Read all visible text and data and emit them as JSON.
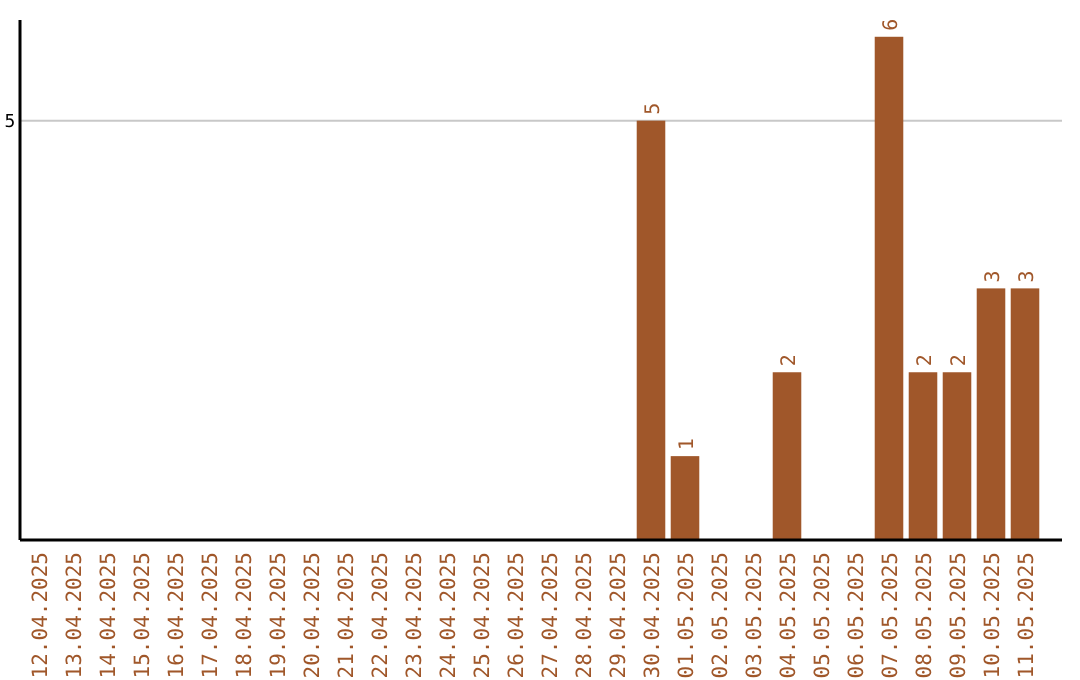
{
  "chart_data": {
    "type": "bar",
    "categories": [
      "12.04.2025",
      "13.04.2025",
      "14.04.2025",
      "15.04.2025",
      "16.04.2025",
      "17.04.2025",
      "18.04.2025",
      "19.04.2025",
      "20.04.2025",
      "21.04.2025",
      "22.04.2025",
      "23.04.2025",
      "24.04.2025",
      "25.04.2025",
      "26.04.2025",
      "27.04.2025",
      "28.04.2025",
      "29.04.2025",
      "30.04.2025",
      "01.05.2025",
      "02.05.2025",
      "03.05.2025",
      "04.05.2025",
      "05.05.2025",
      "06.05.2025",
      "07.05.2025",
      "08.05.2025",
      "09.05.2025",
      "10.05.2025",
      "11.05.2025"
    ],
    "values": [
      null,
      null,
      null,
      null,
      null,
      null,
      null,
      null,
      null,
      null,
      null,
      null,
      null,
      null,
      null,
      null,
      null,
      null,
      5,
      1,
      null,
      null,
      2,
      null,
      null,
      6,
      2,
      2,
      3,
      3
    ],
    "data_labels": true,
    "color": "#a0572a",
    "ylim": [
      0,
      6.2
    ],
    "ref_lines": [
      {
        "axis": "y",
        "value": 5,
        "label": "5",
        "color": "#c8c8c8"
      }
    ]
  }
}
